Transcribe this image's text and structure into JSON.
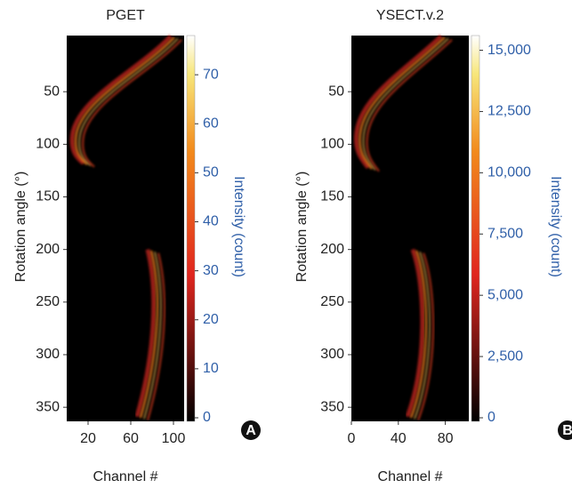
{
  "chart_data": [
    {
      "type": "heatmap",
      "title": "PGET",
      "x_label": "Channel #",
      "y_label": "Rotation angle (°)",
      "colorbar_label": "Intensity (count)",
      "panel_label": "A",
      "xlim": [
        0,
        110
      ],
      "xticks": [
        20,
        60,
        100
      ],
      "ylim": [
        0,
        360
      ],
      "yticks": [
        50,
        100,
        150,
        200,
        250,
        300,
        350
      ],
      "clim": [
        0,
        78
      ],
      "cticks": [
        0,
        10,
        20,
        30,
        40,
        50,
        60,
        70
      ],
      "colormap": "hot"
    },
    {
      "type": "heatmap",
      "title": "YSECT.v.2",
      "x_label": "Channel #",
      "y_label": "Rotation angle (°)",
      "colorbar_label": "Intensity (count)",
      "panel_label": "B",
      "xlim": [
        0,
        100
      ],
      "xticks": [
        0,
        40,
        80
      ],
      "ylim": [
        0,
        360
      ],
      "yticks": [
        50,
        100,
        150,
        200,
        250,
        300,
        350
      ],
      "clim": [
        0,
        15600
      ],
      "cticks": [
        0,
        {
          "value": 2500,
          "label": "2,500"
        },
        {
          "value": 5000,
          "label": "5,000"
        },
        {
          "value": 7500,
          "label": "7,500"
        },
        {
          "value": 10000,
          "label": "10,000"
        },
        {
          "value": 12500,
          "label": "12,500"
        },
        {
          "value": 15000,
          "label": "15,000"
        }
      ],
      "colormap": "hot"
    }
  ]
}
